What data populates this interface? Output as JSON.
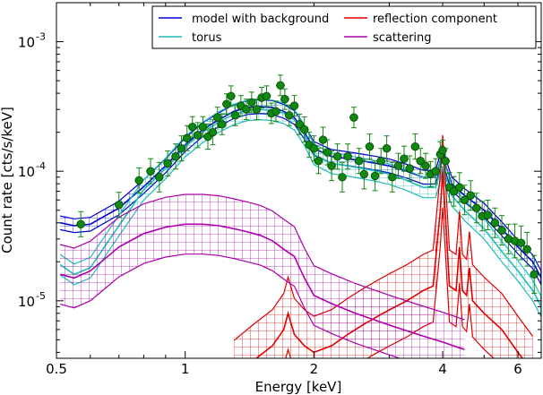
{
  "chart_data": {
    "type": "line",
    "title": "",
    "xlabel": "Energy [keV]",
    "ylabel": "Count rate [cts/s/keV]",
    "xscale": "log",
    "yscale": "log",
    "xlim": [
      0.5,
      6.8
    ],
    "ylim": [
      3.6e-06,
      0.002
    ],
    "xticks": [
      {
        "value": 0.5,
        "label": "0.5"
      },
      {
        "value": 1,
        "label": "1"
      },
      {
        "value": 2,
        "label": "2"
      },
      {
        "value": 4,
        "label": "4"
      },
      {
        "value": 6,
        "label": "6"
      }
    ],
    "yticks": [
      {
        "value": 1e-05,
        "base": "10",
        "exp": "-5"
      },
      {
        "value": 0.0001,
        "base": "10",
        "exp": "-4"
      },
      {
        "value": 0.001,
        "base": "10",
        "exp": "-3"
      }
    ],
    "legend_position": "top-right",
    "series": [
      {
        "name": "model with background",
        "color": "#0000cc",
        "style": "band",
        "x": [
          0.51,
          0.55,
          0.6,
          0.7,
          0.8,
          0.9,
          1.0,
          1.1,
          1.2,
          1.3,
          1.4,
          1.5,
          1.6,
          1.7,
          1.8,
          1.9,
          2.0,
          2.2,
          2.4,
          2.6,
          2.8,
          3.0,
          3.3,
          3.6,
          3.85,
          3.95,
          4.0,
          4.05,
          4.2,
          4.5,
          5.0,
          5.5,
          6.0,
          6.5,
          6.8
        ],
        "y": [
          4e-05,
          3.8e-05,
          3.9e-05,
          5.2e-05,
          7.6e-05,
          0.00011,
          0.00016,
          0.00021,
          0.00025,
          0.00029,
          0.00031,
          0.000315,
          0.00031,
          0.00029,
          0.00026,
          0.0002,
          0.00015,
          0.00013,
          0.000125,
          0.00012,
          0.000115,
          0.00011,
          0.0001,
          9e-05,
          9e-05,
          0.00012,
          0.00015,
          0.000115,
          8e-05,
          6.5e-05,
          5e-05,
          3.6e-05,
          2.6e-05,
          2e-05,
          1.5e-05
        ],
        "band_spread": 1.13
      },
      {
        "name": "torus",
        "color": "#22bbbb",
        "style": "band",
        "x": [
          0.51,
          0.55,
          0.6,
          0.7,
          0.8,
          0.9,
          1.0,
          1.1,
          1.2,
          1.3,
          1.4,
          1.5,
          1.6,
          1.7,
          1.8,
          1.9,
          2.0,
          2.2,
          2.4,
          2.6,
          2.8,
          3.0,
          3.3,
          3.6,
          3.85,
          3.95,
          4.0,
          4.05,
          4.2,
          4.5,
          5.0,
          5.5,
          6.0,
          6.5,
          6.8
        ],
        "y": [
          1.9e-05,
          1.6e-05,
          1.8e-05,
          3.8e-05,
          7.2e-05,
          0.000105,
          0.000155,
          0.0002,
          0.00024,
          0.000275,
          0.000295,
          0.0003,
          0.000295,
          0.00028,
          0.00025,
          0.00019,
          0.000135,
          0.000115,
          0.00011,
          0.000105,
          0.0001,
          9.5e-05,
          8.5e-05,
          7.5e-05,
          7.5e-05,
          0.0001,
          0.00013,
          9.5e-05,
          6.5e-05,
          5e-05,
          3.6e-05,
          2.4e-05,
          1.7e-05,
          1.2e-05,
          9e-06
        ],
        "band_spread": 1.2
      },
      {
        "name": "reflection component",
        "color": "#dd0000",
        "style": "band",
        "x": [
          1.3,
          1.45,
          1.6,
          1.7,
          1.74,
          1.8,
          1.9,
          2.0,
          2.2,
          2.4,
          2.6,
          2.8,
          3.0,
          3.3,
          3.6,
          3.8,
          3.95,
          4.0,
          4.06,
          4.15,
          4.3,
          4.38,
          4.45,
          4.55,
          4.62,
          4.7,
          5.0,
          5.5,
          6.0,
          6.5
        ],
        "y": [
          2.6e-06,
          3.5e-06,
          4.5e-06,
          6e-06,
          8e-06,
          5.5e-06,
          4.5e-06,
          4e-06,
          4.5e-06,
          5.5e-06,
          6.5e-06,
          7.5e-06,
          8.5e-06,
          1e-05,
          1.2e-05,
          1.3e-05,
          5e-05,
          0.0001,
          4.5e-05,
          1.3e-05,
          1.2e-05,
          2.6e-05,
          1.2e-05,
          1.1e-05,
          1.8e-05,
          1e-05,
          8e-06,
          6e-06,
          4e-06,
          2.8e-06
        ],
        "band_spread": 1.9
      },
      {
        "name": "scattering",
        "color": "#aa00aa",
        "style": "band",
        "x": [
          0.51,
          0.55,
          0.6,
          0.7,
          0.8,
          0.9,
          1.0,
          1.1,
          1.2,
          1.3,
          1.4,
          1.5,
          1.6,
          1.7,
          1.8,
          1.9,
          2.0,
          2.2,
          2.5,
          3.0,
          3.5,
          4.0,
          4.5
        ],
        "y": [
          1.6e-05,
          1.5e-05,
          1.7e-05,
          2.6e-05,
          3.3e-05,
          3.7e-05,
          3.9e-05,
          3.9e-05,
          3.8e-05,
          3.6e-05,
          3.4e-05,
          3.2e-05,
          2.9e-05,
          2.5e-05,
          2.2e-05,
          1.5e-05,
          1.1e-05,
          9.5e-06,
          8e-06,
          6.5e-06,
          5.5e-06,
          4.8e-06,
          4.2e-06
        ],
        "band_spread": 1.7
      },
      {
        "name": "",
        "color": "#118811",
        "style": "points",
        "points": [
          [
            0.57,
            3.9e-05,
            1.25
          ],
          [
            0.7,
            5.5e-05,
            1.25
          ],
          [
            0.78,
            8.5e-05,
            1.25
          ],
          [
            0.83,
            0.0001,
            1.25
          ],
          [
            0.87,
            9e-05,
            1.3
          ],
          [
            0.91,
            0.000115,
            1.25
          ],
          [
            0.95,
            0.00013,
            1.25
          ],
          [
            0.98,
            0.00015,
            1.25
          ],
          [
            1.01,
            0.00018,
            1.25
          ],
          [
            1.04,
            0.00022,
            1.2
          ],
          [
            1.07,
            0.00019,
            1.25
          ],
          [
            1.1,
            0.00022,
            1.2
          ],
          [
            1.13,
            0.000185,
            1.25
          ],
          [
            1.16,
            0.0002,
            1.25
          ],
          [
            1.19,
            0.00026,
            1.2
          ],
          [
            1.22,
            0.00023,
            1.2
          ],
          [
            1.25,
            0.00033,
            1.2
          ],
          [
            1.28,
            0.00038,
            1.2
          ],
          [
            1.31,
            0.00027,
            1.2
          ],
          [
            1.35,
            0.00032,
            1.2
          ],
          [
            1.39,
            0.0003,
            1.2
          ],
          [
            1.43,
            0.00034,
            1.2
          ],
          [
            1.47,
            0.0003,
            1.2
          ],
          [
            1.51,
            0.00037,
            1.2
          ],
          [
            1.55,
            0.00038,
            1.2
          ],
          [
            1.59,
            0.00028,
            1.2
          ],
          [
            1.63,
            0.00029,
            1.2
          ],
          [
            1.67,
            0.00046,
            1.2
          ],
          [
            1.71,
            0.00036,
            1.2
          ],
          [
            1.75,
            0.00027,
            1.2
          ],
          [
            1.8,
            0.00032,
            1.2
          ],
          [
            1.85,
            0.00023,
            1.2
          ],
          [
            1.9,
            0.00021,
            1.25
          ],
          [
            1.95,
            0.00016,
            1.25
          ],
          [
            2.0,
            0.00015,
            1.25
          ],
          [
            2.05,
            0.00012,
            1.25
          ],
          [
            2.1,
            0.000175,
            1.25
          ],
          [
            2.15,
            0.00014,
            1.25
          ],
          [
            2.2,
            0.00011,
            1.3
          ],
          [
            2.27,
            0.00013,
            1.25
          ],
          [
            2.33,
            9e-05,
            1.3
          ],
          [
            2.4,
            0.00013,
            1.25
          ],
          [
            2.48,
            0.00026,
            1.2
          ],
          [
            2.55,
            0.00012,
            1.25
          ],
          [
            2.62,
            9.5e-05,
            1.3
          ],
          [
            2.7,
            0.000155,
            1.25
          ],
          [
            2.78,
            9.2e-05,
            1.3
          ],
          [
            2.87,
            0.00012,
            1.25
          ],
          [
            2.96,
            0.00015,
            1.25
          ],
          [
            3.05,
            9e-05,
            1.3
          ],
          [
            3.15,
            0.00011,
            1.25
          ],
          [
            3.25,
            0.000125,
            1.25
          ],
          [
            3.35,
            0.000105,
            1.25
          ],
          [
            3.45,
            0.000155,
            1.25
          ],
          [
            3.55,
            0.00012,
            1.25
          ],
          [
            3.65,
            0.00011,
            1.25
          ],
          [
            3.75,
            9.5e-05,
            1.25
          ],
          [
            3.85,
            0.0001,
            1.25
          ],
          [
            3.95,
            0.000135,
            1.25
          ],
          [
            4.0,
            0.000145,
            1.2
          ],
          [
            4.06,
            0.00012,
            1.25
          ],
          [
            4.15,
            7.5e-05,
            1.3
          ],
          [
            4.25,
            7e-05,
            1.3
          ],
          [
            4.38,
            7.5e-05,
            1.3
          ],
          [
            4.5,
            6e-05,
            1.3
          ],
          [
            4.65,
            6.5e-05,
            1.3
          ],
          [
            4.8,
            5.2e-05,
            1.3
          ],
          [
            4.95,
            4.5e-05,
            1.3
          ],
          [
            5.1,
            4.6e-05,
            1.3
          ],
          [
            5.3,
            4e-05,
            1.3
          ],
          [
            5.5,
            3.5e-05,
            1.3
          ],
          [
            5.7,
            3e-05,
            1.3
          ],
          [
            5.9,
            2.9e-05,
            1.35
          ],
          [
            6.1,
            2.8e-05,
            1.35
          ],
          [
            6.3,
            2.5e-05,
            1.35
          ],
          [
            6.55,
            1.6e-05,
            1.4
          ]
        ]
      }
    ]
  }
}
